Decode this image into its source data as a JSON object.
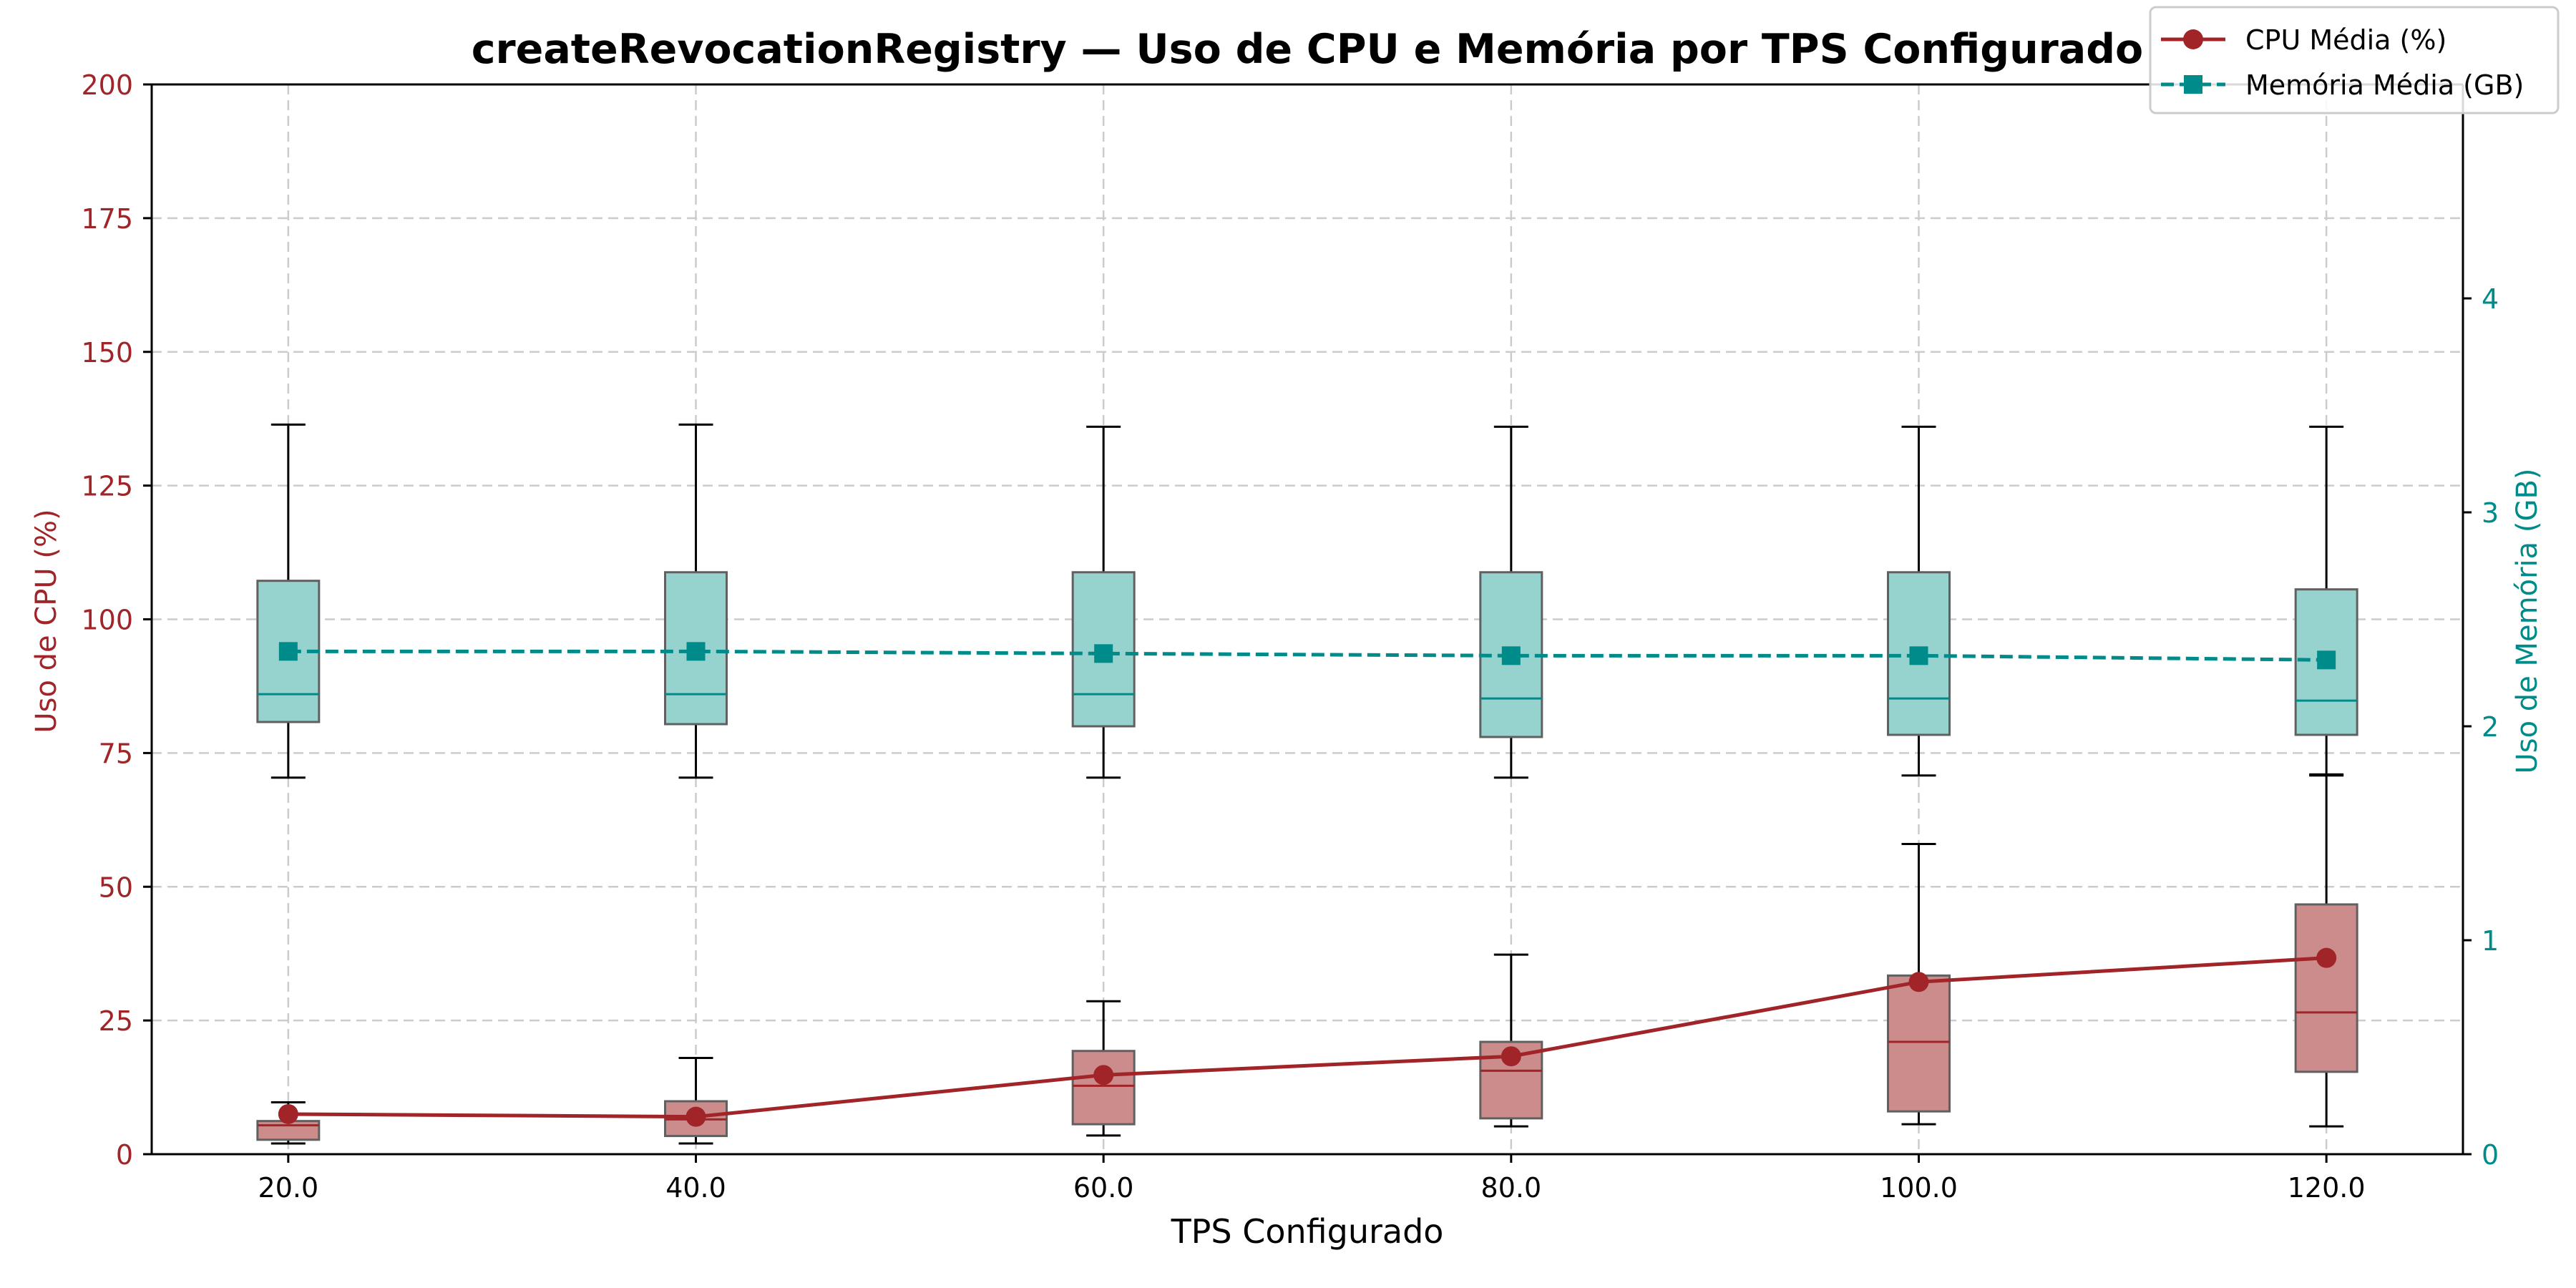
{
  "chart_data": {
    "type": "box",
    "title": "createRevocationRegistry — Uso de CPU e Memória por TPS Configurado",
    "xlabel": "TPS Configurado",
    "ylabel_left": "Uso de CPU (%)",
    "ylabel_right": "Uso de Memória (GB)",
    "x_categories": [
      "20.0",
      "40.0",
      "60.0",
      "80.0",
      "100.0",
      "120.0"
    ],
    "x_values": [
      20,
      40,
      60,
      80,
      100,
      120
    ],
    "xlim": [
      13.3,
      126.7
    ],
    "ylim_left": [
      0,
      200
    ],
    "ylim_right": [
      0,
      5
    ],
    "yticks_left": [
      "0",
      "25",
      "50",
      "75",
      "100",
      "125",
      "150",
      "175",
      "200"
    ],
    "yticks_right": [
      "0",
      "1",
      "2",
      "3",
      "4"
    ],
    "grid": true,
    "legend_position": "top-right",
    "colors": {
      "cpu": "#a02428",
      "cpu_box_fill": "#cd8c8c",
      "memory": "#008b8b",
      "memory_box_fill": "#96d2ce",
      "box_edge": "#606060",
      "whisker": "#000000",
      "grid": "#cccccc",
      "axes": "#000000"
    },
    "series": [
      {
        "name": "CPU Média (%)",
        "axis": "left",
        "style": "solid-circle",
        "mean": [
          7.5,
          7.0,
          14.8,
          18.3,
          32.2,
          36.7
        ],
        "box": [
          {
            "whislo": 2.0,
            "q1": 2.7,
            "med": 5.4,
            "q3": 6.2,
            "whishi": 9.7
          },
          {
            "whislo": 2.0,
            "q1": 3.4,
            "med": 6.5,
            "q3": 9.9,
            "whishi": 18.0
          },
          {
            "whislo": 3.5,
            "q1": 5.6,
            "med": 12.8,
            "q3": 19.3,
            "whishi": 28.6
          },
          {
            "whislo": 5.2,
            "q1": 6.7,
            "med": 15.6,
            "q3": 21.0,
            "whishi": 37.3
          },
          {
            "whislo": 5.6,
            "q1": 8.0,
            "med": 21.0,
            "q3": 33.4,
            "whishi": 58.0
          },
          {
            "whislo": 5.2,
            "q1": 15.4,
            "med": 26.5,
            "q3": 46.7,
            "whishi": 71.0
          }
        ]
      },
      {
        "name": "Memória Média (GB)",
        "axis": "right",
        "style": "dashed-square",
        "mean": [
          2.35,
          2.35,
          2.34,
          2.33,
          2.33,
          2.31
        ],
        "box": [
          {
            "whislo": 1.76,
            "q1": 2.02,
            "med": 2.15,
            "q3": 2.68,
            "whishi": 3.41
          },
          {
            "whislo": 1.76,
            "q1": 2.01,
            "med": 2.15,
            "q3": 2.72,
            "whishi": 3.41
          },
          {
            "whislo": 1.76,
            "q1": 2.0,
            "med": 2.15,
            "q3": 2.72,
            "whishi": 3.4
          },
          {
            "whislo": 1.76,
            "q1": 1.95,
            "med": 2.13,
            "q3": 2.72,
            "whishi": 3.4
          },
          {
            "whislo": 1.77,
            "q1": 1.96,
            "med": 2.13,
            "q3": 2.72,
            "whishi": 3.4
          },
          {
            "whislo": 1.77,
            "q1": 1.96,
            "med": 2.12,
            "q3": 2.64,
            "whishi": 3.4
          }
        ]
      }
    ]
  }
}
